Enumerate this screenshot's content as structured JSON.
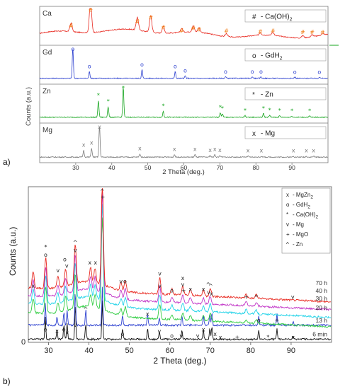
{
  "figure_labels": {
    "a": "a)",
    "b": "b)"
  },
  "chart_data": [
    {
      "type": "line",
      "panel": "a",
      "xlabel": "2 Theta (deg.)",
      "ylabel": "Counts (a.u.)",
      "xlim": [
        20,
        100
      ],
      "xticks": [
        30,
        40,
        50,
        60,
        70,
        80,
        90
      ],
      "grid": false,
      "legend": "top-right of each sub-panel",
      "series": [
        {
          "name": "Ca",
          "legend": "- Ca(OH)2",
          "color": "#e8281f",
          "marker": "#",
          "marker_color": "#f07b14",
          "background": 0.25,
          "peaks": [
            [
              28.7,
              0.28
            ],
            [
              34.1,
              1.0
            ],
            [
              47.1,
              0.42
            ],
            [
              50.8,
              0.55
            ],
            [
              54.3,
              0.22
            ],
            [
              59.4,
              0.12
            ],
            [
              62.6,
              0.2
            ],
            [
              64.2,
              0.15
            ],
            [
              71.8,
              0.1
            ],
            [
              81.2,
              0.08
            ],
            [
              84.7,
              0.1
            ],
            [
              93.0,
              0.07
            ],
            [
              95.6,
              0.07
            ],
            [
              98.5,
              0.06
            ]
          ]
        },
        {
          "name": "Gd",
          "legend": "- GdH2",
          "color": "#2b3fcf",
          "marker": "o",
          "marker_color": "#2b3fcf",
          "background": 0.03,
          "peaks": [
            [
              29.2,
              1.0
            ],
            [
              33.8,
              0.22
            ],
            [
              48.4,
              0.28
            ],
            [
              57.6,
              0.22
            ],
            [
              60.4,
              0.08
            ],
            [
              71.6,
              0.05
            ],
            [
              79.0,
              0.05
            ],
            [
              81.4,
              0.05
            ],
            [
              90.8,
              0.04
            ],
            [
              97.6,
              0.04
            ]
          ]
        },
        {
          "name": "Zn",
          "legend": "- Zn",
          "color": "#16a51e",
          "marker": "*",
          "marker_color": "#16a51e",
          "background": 0.03,
          "peaks": [
            [
              36.3,
              0.55
            ],
            [
              39.0,
              0.35
            ],
            [
              43.2,
              1.0
            ],
            [
              54.3,
              0.2
            ],
            [
              70.1,
              0.15
            ],
            [
              70.7,
              0.12
            ],
            [
              77.0,
              0.05
            ],
            [
              82.1,
              0.12
            ],
            [
              83.8,
              0.06
            ],
            [
              86.6,
              0.05
            ],
            [
              90.0,
              0.04
            ],
            [
              94.9,
              0.04
            ]
          ]
        },
        {
          "name": "Mg",
          "legend": "- Mg",
          "color": "#7a7a7a",
          "marker": "x",
          "marker_color": "#7a7a7a",
          "background": 0.02,
          "peaks": [
            [
              32.2,
              0.22
            ],
            [
              34.4,
              0.28
            ],
            [
              36.6,
              1.0
            ],
            [
              47.8,
              0.1
            ],
            [
              57.4,
              0.08
            ],
            [
              63.1,
              0.08
            ],
            [
              67.3,
              0.05
            ],
            [
              68.6,
              0.08
            ],
            [
              70.0,
              0.05
            ],
            [
              77.8,
              0.03
            ],
            [
              81.5,
              0.03
            ],
            [
              90.4,
              0.03
            ],
            [
              94.0,
              0.03
            ],
            [
              96.0,
              0.03
            ]
          ]
        }
      ],
      "panel_labels": [
        "Ca",
        "Gd",
        "Zn",
        "Mg"
      ],
      "legend_labels": {
        "Ca": [
          "- Ca(OH)",
          "2"
        ],
        "Gd": [
          "- GdH",
          "2"
        ],
        "Zn": [
          "- Zn"
        ],
        "Mg": [
          "- Mg"
        ]
      }
    },
    {
      "type": "line",
      "panel": "b",
      "xlabel": "2 Theta (deg.)",
      "ylabel": "Counts (a.u.)",
      "xlim": [
        25,
        100
      ],
      "xticks": [
        30,
        40,
        50,
        60,
        70,
        80,
        90
      ],
      "yticks": [
        0
      ],
      "grid": false,
      "legend": "top-right",
      "legend_entries": [
        {
          "symbol": "x",
          "text": "- MgZn",
          "sub": "2"
        },
        {
          "symbol": "o",
          "text": "- GdH",
          "sub": "2"
        },
        {
          "symbol": "*",
          "text": "- Ca(OH)",
          "sub": "2"
        },
        {
          "symbol": "v",
          "text": "- Mg",
          "sub": ""
        },
        {
          "symbol": "+",
          "text": "- MgO",
          "sub": ""
        },
        {
          "symbol": "^",
          "text": "- Zn",
          "sub": ""
        }
      ],
      "series": [
        {
          "name": "70 h",
          "color": "#e8281f"
        },
        {
          "name": "40 h",
          "color": "#c236c7"
        },
        {
          "name": "30 h",
          "color": "#22d3e8"
        },
        {
          "name": "20 h",
          "color": "#2ecc40"
        },
        {
          "name": "13 h",
          "color": "#2b3fcf"
        },
        {
          "name": "6 min",
          "color": "#111111"
        }
      ],
      "marker_annotations": [
        {
          "x": 26.2,
          "symbol": "x",
          "level": 0.35
        },
        {
          "x": 29.3,
          "symbol": "o",
          "level": 0.55
        },
        {
          "x": 29.3,
          "symbol": "*",
          "level": 0.6
        },
        {
          "x": 32.3,
          "symbol": "v",
          "level": 0.45
        },
        {
          "x": 34.0,
          "symbol": "o",
          "level": 0.52
        },
        {
          "x": 34.5,
          "symbol": "v",
          "level": 0.48
        },
        {
          "x": 36.6,
          "symbol": "^",
          "level": 0.63
        },
        {
          "x": 36.6,
          "symbol": "v",
          "level": 0.58
        },
        {
          "x": 40.2,
          "symbol": "x",
          "level": 0.5
        },
        {
          "x": 41.6,
          "symbol": "x",
          "level": 0.5
        },
        {
          "x": 43.3,
          "symbol": "^",
          "level": 0.96
        },
        {
          "x": 43.4,
          "symbol": "+",
          "level": 0.92
        },
        {
          "x": 47.9,
          "symbol": "v",
          "level": 0.38
        },
        {
          "x": 48.9,
          "symbol": "o",
          "level": 0.38
        },
        {
          "x": 57.5,
          "symbol": "v",
          "level": 0.43
        },
        {
          "x": 57.5,
          "symbol": "v",
          "level": 0.35
        },
        {
          "x": 60.5,
          "symbol": "o",
          "level": 0.32
        },
        {
          "x": 63.2,
          "symbol": "x",
          "level": 0.4
        },
        {
          "x": 63.2,
          "symbol": "v",
          "level": 0.36
        },
        {
          "x": 63.4,
          "symbol": "+",
          "level": 0.32
        },
        {
          "x": 65.1,
          "symbol": "x",
          "level": 0.33
        },
        {
          "x": 68.3,
          "symbol": "x",
          "level": 0.33
        },
        {
          "x": 69.5,
          "symbol": "^",
          "level": 0.36
        },
        {
          "x": 70.1,
          "symbol": "^",
          "level": 0.35
        },
        {
          "x": 69.6,
          "symbol": "v",
          "level": 0.31
        },
        {
          "x": 70.3,
          "symbol": "x",
          "level": 0.3
        },
        {
          "x": 78.9,
          "symbol": "+",
          "level": 0.28
        },
        {
          "x": 81.4,
          "symbol": "*",
          "level": 0.28
        },
        {
          "x": 90.4,
          "symbol": "v",
          "level": 0.28
        },
        {
          "x": 29.2,
          "symbol": "o",
          "level": 0.07
        },
        {
          "x": 29.2,
          "symbol": "*",
          "level": 0.1
        },
        {
          "x": 32.1,
          "symbol": "x",
          "level": 0.06
        },
        {
          "x": 33.8,
          "symbol": "o",
          "level": 0.07
        },
        {
          "x": 34.6,
          "symbol": "x",
          "level": 0.05
        },
        {
          "x": 36.6,
          "symbol": "v",
          "level": 0.1
        },
        {
          "x": 39.2,
          "symbol": "^",
          "level": 0.2
        },
        {
          "x": 48.3,
          "symbol": "o",
          "level": 0.04
        },
        {
          "x": 54.5,
          "symbol": "x",
          "level": 0.17
        },
        {
          "x": 57.4,
          "symbol": "v",
          "level": 0.06
        },
        {
          "x": 60.5,
          "symbol": "o",
          "level": 0.03
        },
        {
          "x": 62.8,
          "symbol": "v",
          "level": 0.03
        },
        {
          "x": 66.9,
          "symbol": "v",
          "level": 0.03
        },
        {
          "x": 68.3,
          "symbol": "x",
          "level": 0.07
        },
        {
          "x": 71.2,
          "symbol": "x",
          "level": 0.04
        },
        {
          "x": 72.5,
          "symbol": "x",
          "level": 0.02
        },
        {
          "x": 76.7,
          "symbol": "+",
          "level": 0.02
        },
        {
          "x": 82.0,
          "symbol": "o",
          "level": 0.13
        },
        {
          "x": 84.3,
          "symbol": "*",
          "level": 0.02
        },
        {
          "x": 86.5,
          "symbol": "+",
          "level": 0.13
        },
        {
          "x": 90.5,
          "symbol": "x",
          "level": 0.02
        }
      ]
    }
  ]
}
